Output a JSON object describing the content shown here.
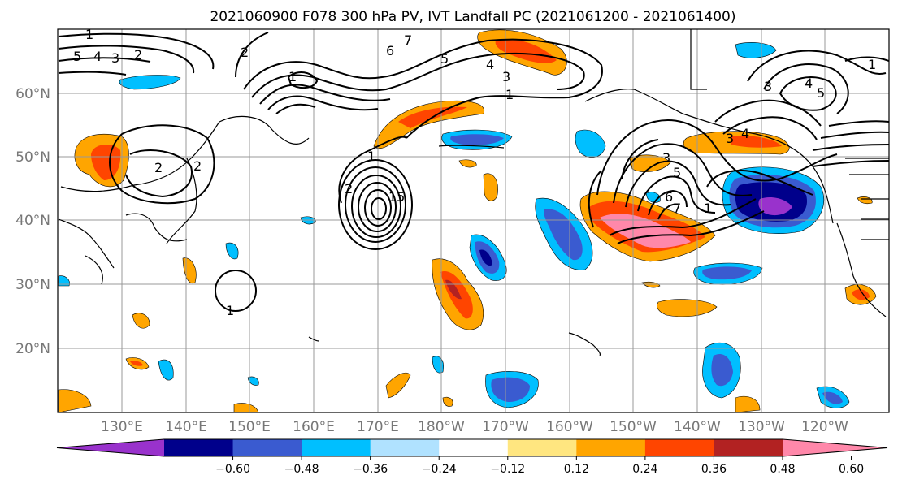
{
  "title": "2021060900 F078 300 hPa PV, IVT Landfall PC (2021061200 - 2021061400)",
  "lat_labels": [
    "60°N",
    "50°N",
    "40°N",
    "30°N",
    "20°N"
  ],
  "lon_labels": [
    "130°E",
    "140°E",
    "150°E",
    "160°E",
    "170°E",
    "180°W",
    "170°W",
    "160°W",
    "150°W",
    "140°W",
    "130°W",
    "120°W"
  ],
  "colorbar": {
    "ticks": [
      "−0.60",
      "−0.48",
      "−0.36",
      "−0.24",
      "−0.12",
      "0.12",
      "0.24",
      "0.36",
      "0.48",
      "0.60"
    ],
    "colors": [
      "#9932cc",
      "#00008b",
      "#3a5bd0",
      "#00bfff",
      "#b0e2ff",
      "#ffffff",
      "#ffe680",
      "#ffa500",
      "#ff4500",
      "#b22222",
      "#ff88aa"
    ]
  },
  "contour_labels": [
    "1",
    "5",
    "4",
    "3",
    "2",
    "7",
    "6",
    "5",
    "4",
    "3",
    "1",
    "2",
    "1",
    "2",
    "1",
    "2",
    "15",
    "1",
    "3",
    "4",
    "3",
    "4",
    "5",
    "1",
    "3",
    "5",
    "6",
    "2",
    "1",
    "7"
  ]
}
